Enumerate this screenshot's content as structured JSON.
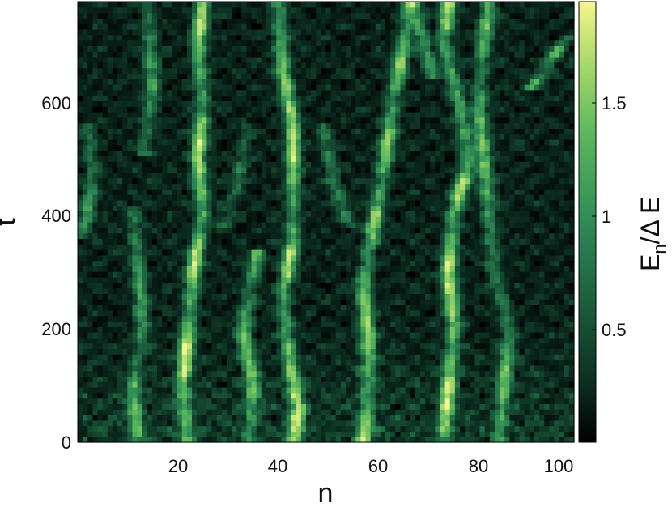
{
  "chart_data": {
    "type": "heatmap",
    "title": "",
    "xlabel": "n",
    "ylabel": "t",
    "xlim": [
      1,
      100
    ],
    "ylim": [
      0,
      775
    ],
    "xticks": [
      20,
      40,
      60,
      80,
      100
    ],
    "yticks": [
      0,
      200,
      400,
      600
    ],
    "x_tick_labels": [
      "20",
      "40",
      "60",
      "80",
      "100"
    ],
    "y_tick_labels": [
      "0",
      "200",
      "400",
      "600"
    ],
    "colorbar": {
      "label_main": "E",
      "label_sub": "n",
      "label_rest": "/Δ E",
      "range": [
        0,
        1.95
      ],
      "ticks": [
        0.5,
        1,
        1.5
      ],
      "tick_labels": [
        "0.5",
        "1",
        "1.5"
      ],
      "colormap": [
        "#000000",
        "#0b2a1f",
        "#1a5a3a",
        "#2e8b57",
        "#5bb85c",
        "#a8d86a",
        "#f4f78c"
      ]
    },
    "grid": false,
    "description_of_structure": "",
    "tracks": [
      {
        "points": [
          [
            2,
            360
          ],
          [
            4,
            470
          ],
          [
            3,
            560
          ]
        ],
        "amp": 0.9
      },
      {
        "points": [
          [
            13,
            0
          ],
          [
            12,
            100
          ],
          [
            14,
            200
          ],
          [
            13,
            320
          ],
          [
            12,
            420
          ]
        ],
        "amp": 0.85
      },
      {
        "points": [
          [
            14,
            500
          ],
          [
            16,
            620
          ],
          [
            15,
            775
          ]
        ],
        "amp": 0.8
      },
      {
        "points": [
          [
            23,
            0
          ],
          [
            22,
            100
          ],
          [
            23,
            200
          ],
          [
            24,
            300
          ],
          [
            26,
            400
          ],
          [
            25,
            500
          ],
          [
            26,
            600
          ],
          [
            25,
            700
          ],
          [
            26,
            775
          ]
        ],
        "amp": 1.55
      },
      {
        "points": [
          [
            35,
            0
          ],
          [
            36,
            100
          ],
          [
            34,
            200
          ],
          [
            36,
            300
          ],
          [
            37,
            340
          ]
        ],
        "amp": 1.05
      },
      {
        "points": [
          [
            44,
            0
          ],
          [
            45,
            60
          ],
          [
            43,
            160
          ],
          [
            42,
            260
          ],
          [
            44,
            360
          ],
          [
            44,
            450
          ],
          [
            44,
            560
          ],
          [
            42,
            650
          ],
          [
            41,
            775
          ]
        ],
        "amp": 1.5
      },
      {
        "points": [
          [
            58,
            0
          ],
          [
            59,
            100
          ],
          [
            59,
            180
          ],
          [
            58,
            280
          ],
          [
            60,
            380
          ],
          [
            62,
            480
          ],
          [
            64,
            600
          ],
          [
            66,
            700
          ],
          [
            67,
            775
          ]
        ],
        "amp": 1.3
      },
      {
        "points": [
          [
            74,
            0
          ],
          [
            75,
            100
          ],
          [
            76,
            200
          ],
          [
            75,
            300
          ],
          [
            76,
            400
          ],
          [
            79,
            500
          ],
          [
            77,
            600
          ],
          [
            74,
            700
          ],
          [
            75,
            775
          ]
        ],
        "amp": 1.55
      },
      {
        "points": [
          [
            85,
            0
          ],
          [
            86,
            100
          ],
          [
            87,
            200
          ],
          [
            84,
            300
          ],
          [
            83,
            400
          ],
          [
            82,
            500
          ],
          [
            81,
            600
          ],
          [
            82,
            700
          ],
          [
            83,
            775
          ]
        ],
        "amp": 1.1
      },
      {
        "points": [
          [
            91,
            620
          ],
          [
            96,
            680
          ],
          [
            99,
            720
          ]
        ],
        "amp": 1.0
      },
      {
        "points": [
          [
            72,
            640
          ],
          [
            70,
            700
          ],
          [
            68,
            775
          ]
        ],
        "amp": 0.8
      },
      {
        "points": [
          [
            55,
            380
          ],
          [
            52,
            460
          ],
          [
            50,
            560
          ]
        ],
        "amp": 0.55
      },
      {
        "points": [
          [
            30,
            380
          ],
          [
            33,
            460
          ],
          [
            35,
            560
          ]
        ],
        "amp": 0.55
      }
    ]
  }
}
